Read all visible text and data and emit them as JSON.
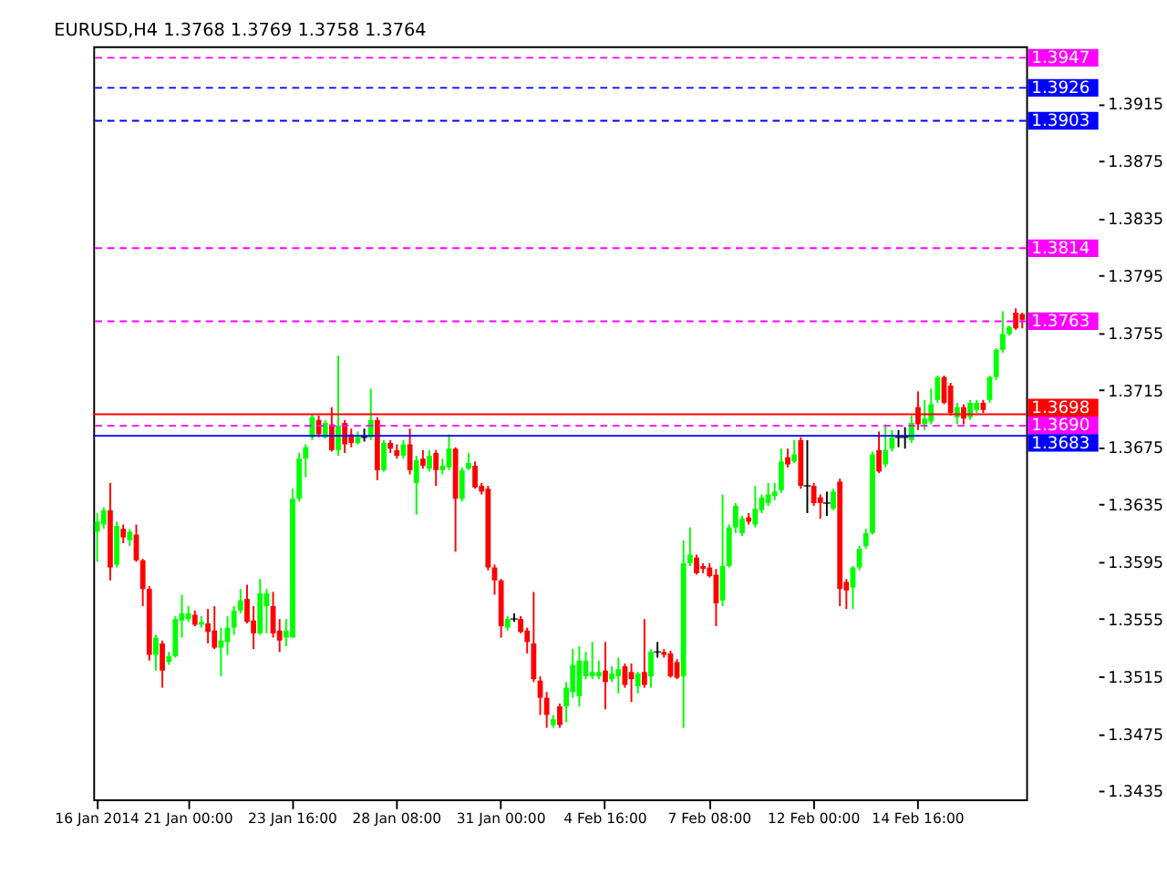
{
  "chart_data": {
    "type": "candlestick",
    "title": "EURUSD,H4  1.3768 1.3769 1.3758 1.3764",
    "categories": [
      "16 Jan 2014",
      null,
      null,
      null,
      null,
      null,
      null,
      null,
      null,
      null,
      null,
      null,
      null,
      null,
      "21 Jan 00:00",
      null,
      null,
      null,
      null,
      null,
      null,
      null,
      null,
      null,
      null,
      null,
      null,
      null,
      null,
      null,
      "23 Jan 16:00",
      null,
      null,
      null,
      null,
      null,
      null,
      null,
      null,
      null,
      null,
      null,
      null,
      null,
      null,
      null,
      "28 Jan 08:00",
      null,
      null,
      null,
      null,
      null,
      null,
      null,
      null,
      null,
      null,
      null,
      null,
      null,
      null,
      null,
      "31 Jan 00:00",
      null,
      null,
      null,
      null,
      null,
      null,
      null,
      null,
      null,
      null,
      null,
      null,
      null,
      null,
      null,
      "4 Feb 16:00",
      null,
      null,
      null,
      null,
      null,
      null,
      null,
      null,
      null,
      null,
      null,
      null,
      null,
      null,
      null,
      "7 Feb 08:00",
      null,
      null,
      null,
      null,
      null,
      null,
      null,
      null,
      null,
      null,
      null,
      null,
      null,
      null,
      null,
      "12 Feb 00:00",
      null,
      null,
      null,
      null,
      null,
      null,
      null,
      null,
      null,
      null,
      null,
      null,
      null,
      null,
      null,
      "14 Feb 16:00",
      null,
      null,
      null,
      null,
      null,
      null,
      null,
      null,
      null,
      null,
      null,
      null,
      null,
      null,
      null,
      null
    ],
    "ohlc": [
      [
        1.3616,
        1.3629,
        1.3595,
        1.3623
      ],
      [
        1.3621,
        1.3633,
        1.3618,
        1.3631
      ],
      [
        1.3631,
        1.365,
        1.3582,
        1.3591
      ],
      [
        1.3593,
        1.3623,
        1.3591,
        1.362
      ],
      [
        1.3618,
        1.3621,
        1.3608,
        1.3612
      ],
      [
        1.361,
        1.3618,
        1.3606,
        1.3616
      ],
      [
        1.3614,
        1.3621,
        1.3595,
        1.3596
      ],
      [
        1.3596,
        1.3597,
        1.3564,
        1.3576
      ],
      [
        1.3576,
        1.3578,
        1.3526,
        1.353
      ],
      [
        1.353,
        1.3544,
        1.3519,
        1.3542
      ],
      [
        1.3538,
        1.354,
        1.3507,
        1.3519
      ],
      [
        1.3525,
        1.3532,
        1.3523,
        1.3529
      ],
      [
        1.3529,
        1.3557,
        1.3528,
        1.3555
      ],
      [
        1.3554,
        1.3572,
        1.3542,
        1.3559
      ],
      [
        1.3555,
        1.3564,
        1.3553,
        1.3559
      ],
      [
        1.3558,
        1.3561,
        1.355,
        1.3551
      ],
      [
        1.3551,
        1.3557,
        1.3549,
        1.3553
      ],
      [
        1.3552,
        1.3562,
        1.3538,
        1.3546
      ],
      [
        1.3547,
        1.3564,
        1.3534,
        1.3535
      ],
      [
        1.3535,
        1.3549,
        1.3515,
        1.354
      ],
      [
        1.3539,
        1.3557,
        1.353,
        1.3549
      ],
      [
        1.3549,
        1.3564,
        1.3544,
        1.3561
      ],
      [
        1.3561,
        1.3576,
        1.3559,
        1.3568
      ],
      [
        1.3569,
        1.3579,
        1.3552,
        1.3553
      ],
      [
        1.3554,
        1.3564,
        1.3534,
        1.3545
      ],
      [
        1.3545,
        1.3583,
        1.3544,
        1.3573
      ],
      [
        1.3564,
        1.3576,
        1.3545,
        1.3573
      ],
      [
        1.3564,
        1.3574,
        1.3542,
        1.3545
      ],
      [
        1.3547,
        1.3555,
        1.3532,
        1.354
      ],
      [
        1.3542,
        1.3555,
        1.3536,
        1.3547
      ],
      [
        1.3542,
        1.3646,
        1.3542,
        1.3639
      ],
      [
        1.3639,
        1.3671,
        1.3637,
        1.3667
      ],
      [
        1.3667,
        1.3677,
        1.3654,
        1.3675
      ],
      [
        1.3682,
        1.3698,
        1.368,
        1.3696
      ],
      [
        1.3694,
        1.3697,
        1.3682,
        1.3684
      ],
      [
        1.3682,
        1.3694,
        1.3681,
        1.3692
      ],
      [
        1.3691,
        1.3703,
        1.3672,
        1.3673
      ],
      [
        1.3673,
        1.3739,
        1.3669,
        1.369
      ],
      [
        1.3692,
        1.3694,
        1.3671,
        1.3677
      ],
      [
        1.3684,
        1.3688,
        1.3675,
        1.3678
      ],
      [
        1.3678,
        1.3686,
        1.3677,
        1.3682
      ],
      [
        1.3682,
        1.3688,
        1.3679,
        1.3682
      ],
      [
        1.3682,
        1.3716,
        1.368,
        1.3694
      ],
      [
        1.3694,
        1.3696,
        1.3652,
        1.3659
      ],
      [
        1.3659,
        1.368,
        1.3658,
        1.3678
      ],
      [
        1.3678,
        1.368,
        1.3671,
        1.3674
      ],
      [
        1.3673,
        1.3677,
        1.3667,
        1.3669
      ],
      [
        1.3669,
        1.368,
        1.3667,
        1.3677
      ],
      [
        1.3677,
        1.3688,
        1.3656,
        1.3659
      ],
      [
        1.365,
        1.3669,
        1.3628,
        1.3666
      ],
      [
        1.3667,
        1.3673,
        1.366,
        1.3662
      ],
      [
        1.366,
        1.3673,
        1.3658,
        1.3669
      ],
      [
        1.3671,
        1.3673,
        1.3648,
        1.3659
      ],
      [
        1.3659,
        1.3667,
        1.3656,
        1.3662
      ],
      [
        1.3661,
        1.3684,
        1.3659,
        1.3674
      ],
      [
        1.3674,
        1.3675,
        1.3602,
        1.3639
      ],
      [
        1.3639,
        1.3661,
        1.3637,
        1.3659
      ],
      [
        1.366,
        1.3671,
        1.3659,
        1.3664
      ],
      [
        1.3662,
        1.3665,
        1.3646,
        1.3647
      ],
      [
        1.3648,
        1.365,
        1.3642,
        1.3644
      ],
      [
        1.3646,
        1.3648,
        1.3589,
        1.3591
      ],
      [
        1.3591,
        1.3593,
        1.3572,
        1.3582
      ],
      [
        1.3582,
        1.3583,
        1.3542,
        1.355
      ],
      [
        1.3549,
        1.3557,
        1.3547,
        1.3555
      ],
      [
        1.3555,
        1.3559,
        1.3553,
        1.3555
      ],
      [
        1.3555,
        1.3557,
        1.3545,
        1.3546
      ],
      [
        1.3547,
        1.3549,
        1.3531,
        1.3539
      ],
      [
        1.3538,
        1.3574,
        1.3511,
        1.3513
      ],
      [
        1.3512,
        1.3515,
        1.3488,
        1.35
      ],
      [
        1.35,
        1.3504,
        1.3479,
        1.3488
      ],
      [
        1.3481,
        1.3488,
        1.3479,
        1.3485
      ],
      [
        1.3494,
        1.3496,
        1.3479,
        1.3481
      ],
      [
        1.3494,
        1.3511,
        1.3483,
        1.3507
      ],
      [
        1.3504,
        1.3534,
        1.35,
        1.3523
      ],
      [
        1.3501,
        1.3536,
        1.3494,
        1.3526
      ],
      [
        1.3515,
        1.3532,
        1.3513,
        1.3526
      ],
      [
        1.3515,
        1.3539,
        1.3513,
        1.3518
      ],
      [
        1.3515,
        1.3526,
        1.3513,
        1.3518
      ],
      [
        1.3519,
        1.3539,
        1.3492,
        1.3511
      ],
      [
        1.3513,
        1.3522,
        1.3511,
        1.3517
      ],
      [
        1.3515,
        1.3528,
        1.3503,
        1.352
      ],
      [
        1.3522,
        1.3524,
        1.3507,
        1.3509
      ],
      [
        1.3518,
        1.3524,
        1.3497,
        1.3513
      ],
      [
        1.3508,
        1.3518,
        1.3503,
        1.3517
      ],
      [
        1.3518,
        1.3555,
        1.3507,
        1.3509
      ],
      [
        1.3515,
        1.3534,
        1.3507,
        1.3532
      ],
      [
        1.3532,
        1.3539,
        1.3528,
        1.3532
      ],
      [
        1.3532,
        1.3534,
        1.3528,
        1.353
      ],
      [
        1.3531,
        1.3533,
        1.3514,
        1.3515
      ],
      [
        1.3525,
        1.3527,
        1.3513,
        1.3514
      ],
      [
        1.3515,
        1.361,
        1.3479,
        1.3594
      ],
      [
        1.3594,
        1.3619,
        1.3592,
        1.36
      ],
      [
        1.3598,
        1.36,
        1.3586,
        1.3587
      ],
      [
        1.3592,
        1.3594,
        1.3587,
        1.359
      ],
      [
        1.3591,
        1.3594,
        1.3584,
        1.3585
      ],
      [
        1.3586,
        1.359,
        1.355,
        1.3566
      ],
      [
        1.3568,
        1.3642,
        1.3564,
        1.3592
      ],
      [
        1.3592,
        1.3621,
        1.3591,
        1.3619
      ],
      [
        1.3619,
        1.3636,
        1.3615,
        1.3634
      ],
      [
        1.3615,
        1.3627,
        1.3613,
        1.3625
      ],
      [
        1.3626,
        1.3629,
        1.3621,
        1.3623
      ],
      [
        1.3621,
        1.3648,
        1.3619,
        1.3632
      ],
      [
        1.3631,
        1.3642,
        1.3629,
        1.364
      ],
      [
        1.3636,
        1.365,
        1.3634,
        1.3642
      ],
      [
        1.3641,
        1.365,
        1.3638,
        1.3644
      ],
      [
        1.3645,
        1.3674,
        1.3643,
        1.3665
      ],
      [
        1.3668,
        1.3674,
        1.3661,
        1.3663
      ],
      [
        1.3665,
        1.368,
        1.3664,
        1.367
      ],
      [
        1.368,
        1.3682,
        1.3646,
        1.3648
      ],
      [
        1.3648,
        1.368,
        1.3629,
        1.3648
      ],
      [
        1.3648,
        1.365,
        1.3634,
        1.3636
      ],
      [
        1.364,
        1.3642,
        1.3625,
        1.3636
      ],
      [
        1.3636,
        1.3644,
        1.3627,
        1.3636
      ],
      [
        1.3632,
        1.3646,
        1.3631,
        1.3644
      ],
      [
        1.3651,
        1.3653,
        1.3564,
        1.3576
      ],
      [
        1.3581,
        1.3583,
        1.3562,
        1.3575
      ],
      [
        1.3577,
        1.3592,
        1.3562,
        1.3591
      ],
      [
        1.3591,
        1.3606,
        1.3589,
        1.3604
      ],
      [
        1.3606,
        1.3618,
        1.3604,
        1.3615
      ],
      [
        1.3615,
        1.3672,
        1.3614,
        1.367
      ],
      [
        1.3673,
        1.3686,
        1.3657,
        1.3658
      ],
      [
        1.3663,
        1.3691,
        1.3661,
        1.3673
      ],
      [
        1.3674,
        1.3687,
        1.3672,
        1.3682
      ],
      [
        1.3682,
        1.3687,
        1.3675,
        1.3682
      ],
      [
        1.3682,
        1.3689,
        1.3674,
        1.3682
      ],
      [
        1.368,
        1.3697,
        1.3678,
        1.3692
      ],
      [
        1.3703,
        1.3714,
        1.3687,
        1.3691
      ],
      [
        1.3691,
        1.3708,
        1.3687,
        1.3695
      ],
      [
        1.3693,
        1.3716,
        1.3691,
        1.3705
      ],
      [
        1.3708,
        1.3725,
        1.3706,
        1.3724
      ],
      [
        1.3724,
        1.3725,
        1.3705,
        1.3706
      ],
      [
        1.3718,
        1.372,
        1.3697,
        1.3699
      ],
      [
        1.3696,
        1.3706,
        1.3691,
        1.3703
      ],
      [
        1.3703,
        1.3705,
        1.3691,
        1.3695
      ],
      [
        1.3696,
        1.3708,
        1.3694,
        1.3706
      ],
      [
        1.3701,
        1.3708,
        1.3699,
        1.3706
      ],
      [
        1.3706,
        1.3708,
        1.3699,
        1.3701
      ],
      [
        1.3708,
        1.3725,
        1.3706,
        1.3724
      ],
      [
        1.3724,
        1.3744,
        1.3722,
        1.3743
      ],
      [
        1.3743,
        1.377,
        1.3741,
        1.3754
      ],
      [
        1.3754,
        1.376,
        1.3753,
        1.3759
      ],
      [
        1.3769,
        1.3772,
        1.3757,
        1.3758
      ],
      [
        1.3768,
        1.3769,
        1.3758,
        1.3764
      ]
    ],
    "colors": [
      "#00ff00",
      "#00ff00",
      "#ff0000",
      "#00ff00",
      "#ff0000",
      "#00ff00",
      "#ff0000",
      "#ff0000",
      "#ff0000",
      "#00ff00",
      "#ff0000",
      "#00ff00",
      "#00ff00",
      "#00ff00",
      "#00ff00",
      "#ff0000",
      "#00ff00",
      "#ff0000",
      "#ff0000",
      "#00ff00",
      "#00ff00",
      "#00ff00",
      "#00ff00",
      "#ff0000",
      "#ff0000",
      "#00ff00",
      "#00ff00",
      "#ff0000",
      "#ff0000",
      "#00ff00",
      "#00ff00",
      "#00ff00",
      "#00ff00",
      "#00ff00",
      "#ff0000",
      "#00ff00",
      "#ff0000",
      "#00ff00",
      "#ff0000",
      "#ff0000",
      "#00ff00",
      "#000000",
      "#00ff00",
      "#ff0000",
      "#00ff00",
      "#ff0000",
      "#ff0000",
      "#00ff00",
      "#ff0000",
      "#00ff00",
      "#ff0000",
      "#00ff00",
      "#ff0000",
      "#00ff00",
      "#00ff00",
      "#ff0000",
      "#00ff00",
      "#00ff00",
      "#ff0000",
      "#ff0000",
      "#ff0000",
      "#ff0000",
      "#ff0000",
      "#00ff00",
      "#000000",
      "#ff0000",
      "#ff0000",
      "#ff0000",
      "#ff0000",
      "#ff0000",
      "#00ff00",
      "#ff0000",
      "#00ff00",
      "#00ff00",
      "#00ff00",
      "#00ff00",
      "#00ff00",
      "#00ff00",
      "#ff0000",
      "#00ff00",
      "#00ff00",
      "#ff0000",
      "#ff0000",
      "#00ff00",
      "#ff0000",
      "#00ff00",
      "#000000",
      "#ff0000",
      "#ff0000",
      "#ff0000",
      "#00ff00",
      "#00ff00",
      "#ff0000",
      "#ff0000",
      "#ff0000",
      "#ff0000",
      "#00ff00",
      "#00ff00",
      "#00ff00",
      "#00ff00",
      "#ff0000",
      "#00ff00",
      "#00ff00",
      "#00ff00",
      "#00ff00",
      "#00ff00",
      "#ff0000",
      "#00ff00",
      "#ff0000",
      "#000000",
      "#ff0000",
      "#ff0000",
      "#000000",
      "#00ff00",
      "#ff0000",
      "#ff0000",
      "#00ff00",
      "#00ff00",
      "#00ff00",
      "#00ff00",
      "#ff0000",
      "#00ff00",
      "#00ff00",
      "#000000",
      "#000000",
      "#00ff00",
      "#ff0000",
      "#00ff00",
      "#00ff00",
      "#00ff00",
      "#ff0000",
      "#ff0000",
      "#00ff00",
      "#ff0000",
      "#00ff00",
      "#00ff00",
      "#ff0000",
      "#00ff00",
      "#00ff00",
      "#00ff00",
      "#00ff00",
      "#ff0000",
      "#ff0000"
    ],
    "ylim": [
      1.3429,
      1.3955
    ],
    "yticks": [
      1.3435,
      1.3475,
      1.3515,
      1.3555,
      1.3595,
      1.3635,
      1.3675,
      1.3715,
      1.3755,
      1.3795,
      1.3835,
      1.3875,
      1.3915
    ],
    "ref_lines": [
      {
        "axis": "y",
        "value": 1.3947,
        "label": "1.3947",
        "color": "#ff00ff",
        "line_style": "dashed"
      },
      {
        "axis": "y",
        "value": 1.3926,
        "label": "1.3926",
        "color": "#0000ff",
        "line_style": "dashed"
      },
      {
        "axis": "y",
        "value": 1.3903,
        "label": "1.3903",
        "color": "#0000ff",
        "line_style": "dashed"
      },
      {
        "axis": "y",
        "value": 1.3814,
        "label": "1.3814",
        "color": "#ff00ff",
        "line_style": "dashed"
      },
      {
        "axis": "y",
        "value": 1.3763,
        "label": "1.3763",
        "color": "#ff00ff",
        "line_style": "dashed"
      },
      {
        "axis": "y",
        "value": 1.3698,
        "label": "1.3698",
        "color": "#ff0000",
        "line_style": "solid"
      },
      {
        "axis": "y",
        "value": 1.369,
        "label": "1.3690",
        "color": "#ff00ff",
        "line_style": "dashed"
      },
      {
        "axis": "y",
        "value": 1.3683,
        "label": "1.3683",
        "color": "#0000ff",
        "line_style": "solid"
      }
    ],
    "grid": false
  }
}
